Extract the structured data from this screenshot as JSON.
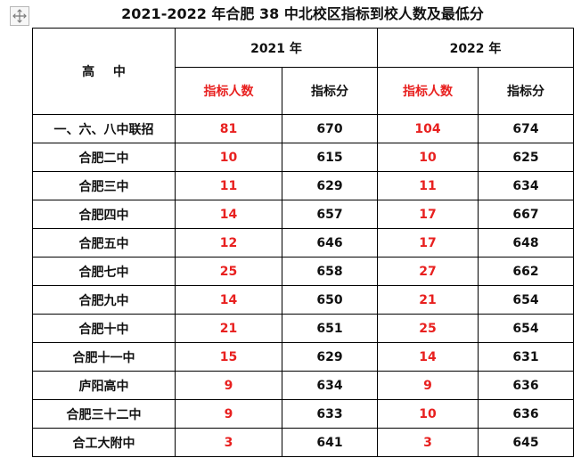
{
  "page": {
    "title": "2021-2022 年合肥 38 中北校区指标到校人数及最低分"
  },
  "table": {
    "corner_label": "高 中",
    "years": [
      "2021 年",
      "2022 年"
    ],
    "sub_headers": [
      "指标人数",
      "指标分",
      "指标人数",
      "指标分"
    ],
    "rows": [
      {
        "school": "一、六、八中联招",
        "y2021_quota": "81",
        "y2021_score": "670",
        "y2022_quota": "104",
        "y2022_score": "674"
      },
      {
        "school": "合肥二中",
        "y2021_quota": "10",
        "y2021_score": "615",
        "y2022_quota": "10",
        "y2022_score": "625"
      },
      {
        "school": "合肥三中",
        "y2021_quota": "11",
        "y2021_score": "629",
        "y2022_quota": "11",
        "y2022_score": "634"
      },
      {
        "school": "合肥四中",
        "y2021_quota": "14",
        "y2021_score": "657",
        "y2022_quota": "17",
        "y2022_score": "667"
      },
      {
        "school": "合肥五中",
        "y2021_quota": "12",
        "y2021_score": "646",
        "y2022_quota": "17",
        "y2022_score": "648"
      },
      {
        "school": "合肥七中",
        "y2021_quota": "25",
        "y2021_score": "658",
        "y2022_quota": "27",
        "y2022_score": "662"
      },
      {
        "school": "合肥九中",
        "y2021_quota": "14",
        "y2021_score": "650",
        "y2022_quota": "21",
        "y2022_score": "654"
      },
      {
        "school": "合肥十中",
        "y2021_quota": "21",
        "y2021_score": "651",
        "y2022_quota": "25",
        "y2022_score": "654"
      },
      {
        "school": "合肥十一中",
        "y2021_quota": "15",
        "y2021_score": "629",
        "y2022_quota": "14",
        "y2022_score": "631"
      },
      {
        "school": "庐阳高中",
        "y2021_quota": "9",
        "y2021_score": "634",
        "y2022_quota": "9",
        "y2022_score": "636"
      },
      {
        "school": "合肥三十二中",
        "y2021_quota": "9",
        "y2021_score": "633",
        "y2022_quota": "10",
        "y2022_score": "636"
      },
      {
        "school": "合工大附中",
        "y2021_quota": "3",
        "y2021_score": "641",
        "y2022_quota": "3",
        "y2022_score": "645"
      }
    ]
  },
  "icons": {
    "move_handle": "move-arrows-icon"
  },
  "colors": {
    "quota_text": "#e8201f",
    "grid_line": "#000000",
    "text": "#111111"
  }
}
